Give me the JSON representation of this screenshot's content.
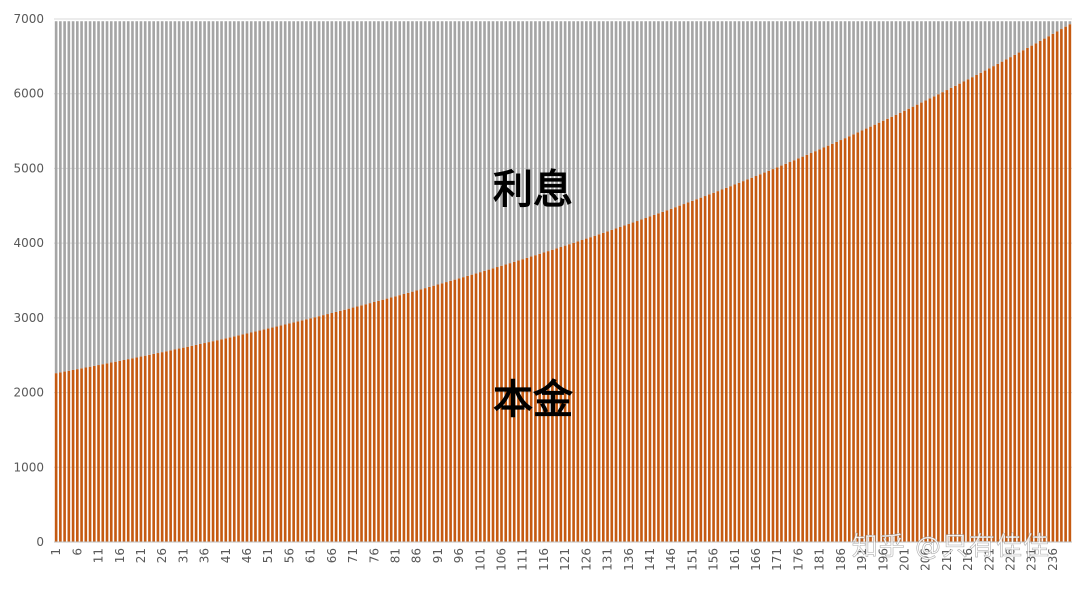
{
  "chart_data": {
    "type": "bar",
    "stacked": true,
    "x_start": 1,
    "x_end": 240,
    "x_tick_step": 5,
    "x_tick_labels": [
      "1",
      "6",
      "11",
      "16",
      "21",
      "26",
      "31",
      "36",
      "41",
      "46",
      "51",
      "56",
      "61",
      "66",
      "71",
      "76",
      "81",
      "86",
      "91",
      "96",
      "101",
      "106",
      "111",
      "116",
      "121",
      "126",
      "131",
      "136",
      "141",
      "146",
      "151",
      "156",
      "161",
      "166",
      "171",
      "176",
      "181",
      "186",
      "191",
      "196",
      "201",
      "206",
      "211",
      "216",
      "221",
      "226",
      "231",
      "236"
    ],
    "ylim": [
      0,
      7000
    ],
    "y_ticks": [
      0,
      1000,
      2000,
      3000,
      4000,
      5000,
      6000,
      7000
    ],
    "monthly_payment": 6970,
    "principal_first": 2260,
    "principal_last": 6930,
    "series": [
      {
        "name": "本金",
        "color": "#c55a11"
      },
      {
        "name": "利息",
        "color": "#a5a5a5"
      }
    ],
    "grid": true
  },
  "labels": {
    "interest": "利息",
    "principal": "本金"
  },
  "watermark": "知乎 @只有佳佳"
}
